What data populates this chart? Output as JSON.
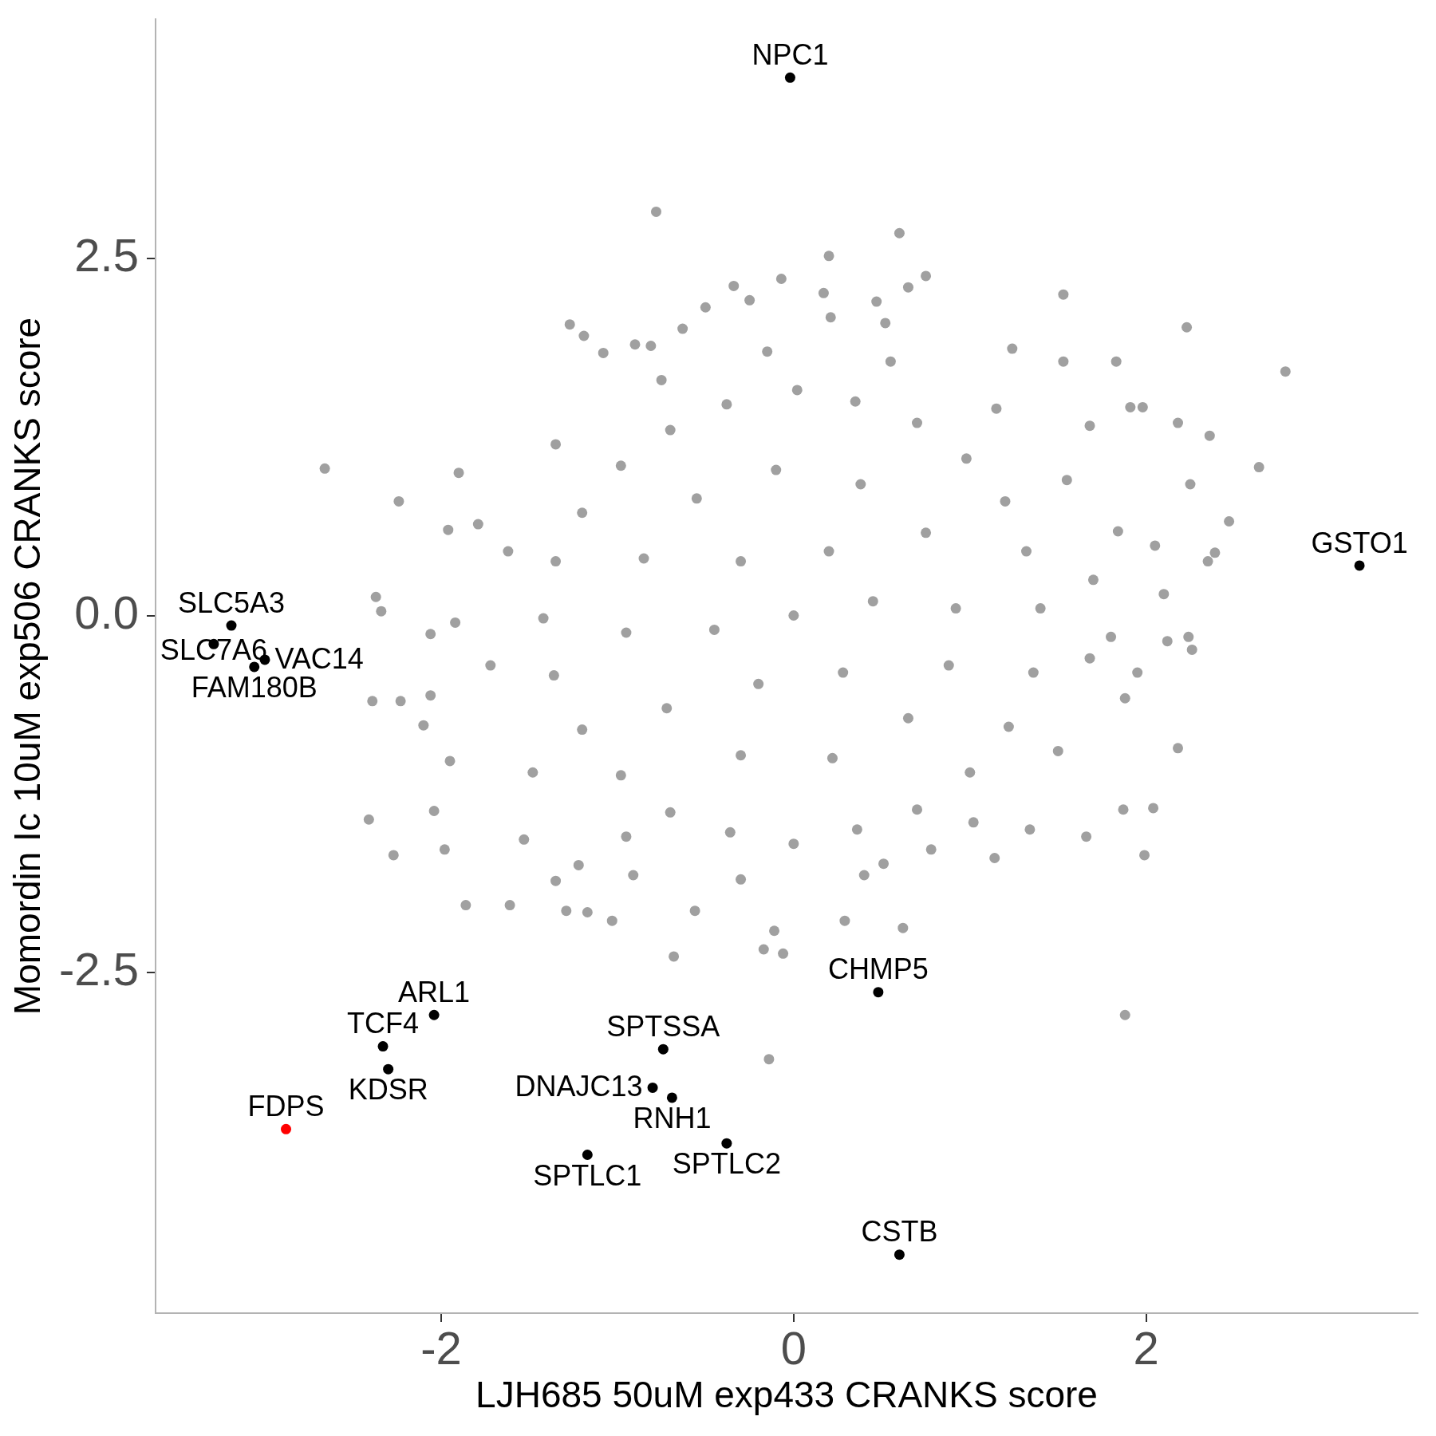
{
  "chart_data": {
    "type": "scatter",
    "xlabel": "LJH685 50uM exp433 CRANKS score",
    "ylabel": "Momordin Ic 10uM exp506 CRANKS score",
    "xlim": [
      -3.62,
      3.54
    ],
    "ylim": [
      -4.89,
      4.18
    ],
    "xticks": [
      -2,
      0,
      2
    ],
    "yticks": [
      -2.5,
      {
        "value": 0,
        "label": "0.0"
      },
      2.5
    ],
    "grid": false,
    "legend": false,
    "marker": "circle",
    "series": [
      {
        "color": "#a0a0a0",
        "x": [
          -0.78,
          0.6,
          0.2,
          -0.07,
          0.75,
          -0.34,
          0.65,
          1.53,
          0.17,
          -0.25,
          -0.5,
          0.47,
          -1.27,
          -0.63,
          0.21,
          0.52,
          2.23,
          2.79,
          1.53,
          1.83,
          1.24,
          -1.08,
          -0.9,
          -0.81,
          -1.19,
          2.64,
          2.47,
          2.25,
          2.36,
          2.18,
          1.91,
          1.98,
          1.68,
          2.39,
          2.35,
          2.24,
          2.26,
          2.1,
          2.12,
          1.95,
          2.18,
          1.87,
          2.04,
          1.99,
          1.88,
          1.66,
          1.88,
          1.8,
          1.84,
          2.05,
          -2.66,
          -2.24,
          -2.37,
          -2.34,
          -2.39,
          -2.23,
          -2.06,
          -2.06,
          -2.41,
          -2.27,
          -1.98,
          -2.04,
          -2.1,
          -1.95,
          -1.9,
          -1.86,
          -1.61,
          -1.29,
          -1.96,
          -1.92,
          -1.79,
          -0.68,
          -0.17,
          -0.06,
          -0.14,
          -0.11,
          0.29,
          0.62,
          -1.03,
          -1.17,
          -0.56,
          1.14,
          1.34,
          0.78,
          0.51,
          -1.22,
          -0.91,
          -1.35,
          -1.53,
          1.4,
          1.32,
          1.2,
          0.98,
          0.7,
          0.35,
          0.02,
          -0.38,
          -0.7,
          -0.98,
          -1.2,
          -1.35,
          -1.42,
          -1.36,
          -1.2,
          -0.98,
          -0.7,
          -0.36,
          0.0,
          0.36,
          0.7,
          1.0,
          1.22,
          1.36,
          1.7,
          1.55,
          1.15,
          0.55,
          -0.15,
          -0.75,
          -1.35,
          -1.62,
          -1.72,
          -1.48,
          -0.95,
          -0.3,
          0.4,
          1.02,
          1.5,
          1.68,
          0.92,
          0.75,
          0.38,
          -0.1,
          -0.55,
          -0.85,
          -0.95,
          -0.72,
          -0.3,
          0.22,
          0.65,
          0.88,
          0.45,
          0.2,
          -0.3,
          -0.45,
          -0.2,
          0.28,
          0.0
        ],
        "values": [
          2.83,
          2.68,
          2.52,
          2.36,
          2.38,
          2.31,
          2.3,
          2.25,
          2.26,
          2.21,
          2.16,
          2.2,
          2.04,
          2.01,
          2.09,
          2.05,
          2.02,
          1.71,
          1.78,
          1.78,
          1.87,
          1.84,
          1.9,
          1.89,
          1.96,
          1.04,
          0.66,
          0.92,
          1.26,
          1.35,
          1.46,
          1.46,
          1.33,
          0.44,
          0.38,
          -0.15,
          -0.24,
          0.15,
          -0.18,
          -0.4,
          -0.93,
          -1.36,
          -1.35,
          -1.68,
          -2.8,
          -1.55,
          -0.58,
          -0.15,
          0.59,
          0.49,
          1.03,
          0.8,
          0.13,
          0.03,
          -0.6,
          -0.6,
          -0.13,
          -0.56,
          -1.43,
          -1.68,
          -1.64,
          -1.37,
          -0.77,
          -1.02,
          1.0,
          -2.03,
          -2.03,
          -2.07,
          0.6,
          -0.05,
          0.64,
          -2.39,
          -2.34,
          -2.37,
          -3.11,
          -2.21,
          -2.14,
          -2.19,
          -2.14,
          -2.08,
          -2.07,
          -1.7,
          -1.5,
          -1.64,
          -1.74,
          -1.75,
          -1.82,
          -1.86,
          -1.57,
          0.05,
          0.45,
          0.8,
          1.1,
          1.35,
          1.5,
          1.58,
          1.48,
          1.3,
          1.05,
          0.72,
          0.38,
          -0.02,
          -0.42,
          -0.8,
          -1.12,
          -1.38,
          -1.52,
          -1.6,
          -1.5,
          -1.36,
          -1.1,
          -0.78,
          -0.4,
          0.25,
          0.95,
          1.45,
          1.78,
          1.85,
          1.65,
          1.2,
          0.45,
          -0.35,
          -1.1,
          -1.55,
          -1.85,
          -1.82,
          -1.45,
          -0.95,
          -0.3,
          0.05,
          0.58,
          0.92,
          1.02,
          0.82,
          0.4,
          -0.12,
          -0.65,
          -0.98,
          -1.0,
          -0.72,
          -0.35,
          0.1,
          0.45,
          0.38,
          -0.1,
          -0.48,
          -0.4,
          0.0
        ]
      },
      {
        "color": "#000000",
        "x": [
          -0.02,
          3.21,
          -3.19,
          -3.0,
          -3.06,
          -3.29,
          -2.04,
          -2.33,
          -2.3,
          0.48,
          -0.74,
          -0.8,
          -0.69,
          -0.38,
          -1.17,
          0.6
        ],
        "values": [
          3.77,
          0.35,
          -0.07,
          -0.31,
          -0.36,
          -0.2,
          -2.8,
          -3.02,
          -3.18,
          -2.64,
          -3.04,
          -3.31,
          -3.38,
          -3.7,
          -3.78,
          -4.48
        ],
        "value_labels": [
          "NPC1",
          "GSTO1",
          "SLC5A3",
          "VAC14",
          "FAM180B",
          "SLC7A6",
          "ARL1",
          "TCF4",
          "KDSR",
          "CHMP5",
          "SPTSSA",
          "DNAJC13",
          "RNH1",
          "SPTLC2",
          "SPTLC1",
          "CSTB"
        ]
      },
      {
        "color": "#ff0000",
        "x": [
          -2.88
        ],
        "values": [
          -3.6
        ],
        "value_labels": [
          "FDPS"
        ]
      }
    ]
  }
}
